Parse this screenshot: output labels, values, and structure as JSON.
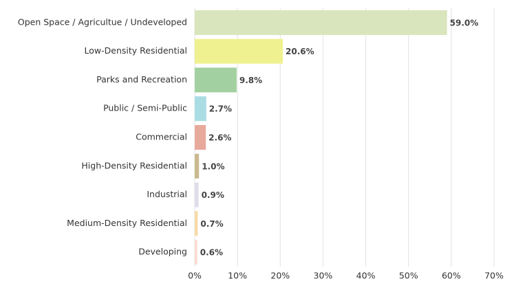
{
  "chart_data": {
    "type": "barh",
    "categories": [
      "Open Space / Agricultue / Undeveloped",
      "Low-Density Residential",
      "Parks and Recreation",
      "Public / Semi-Public",
      "Commercial",
      "High-Density Residential",
      "Industrial",
      "Medium-Density Residential",
      "Developing"
    ],
    "values": [
      59.0,
      20.6,
      9.8,
      2.7,
      2.6,
      1.0,
      0.9,
      0.7,
      0.6
    ],
    "value_labels": [
      "59.0%",
      "20.6%",
      "9.8%",
      "2.7%",
      "2.6%",
      "1.0%",
      "0.9%",
      "0.7%",
      "0.6%"
    ],
    "colors": [
      "#d9e5bc",
      "#eff190",
      "#a3d0a0",
      "#aadde3",
      "#e8a99d",
      "#cab98f",
      "#dddee9",
      "#f8d9a7",
      "#fadcd0"
    ],
    "xlim": [
      0,
      70
    ],
    "xticks": [
      {
        "value": 0,
        "label": "0%"
      },
      {
        "value": 10,
        "label": "10%"
      },
      {
        "value": 20,
        "label": "20%"
      },
      {
        "value": 30,
        "label": "30%"
      },
      {
        "value": 40,
        "label": "40%"
      },
      {
        "value": 50,
        "label": "50%"
      },
      {
        "value": 60,
        "label": "60%"
      },
      {
        "value": 70,
        "label": "70%"
      }
    ],
    "grid": true
  }
}
